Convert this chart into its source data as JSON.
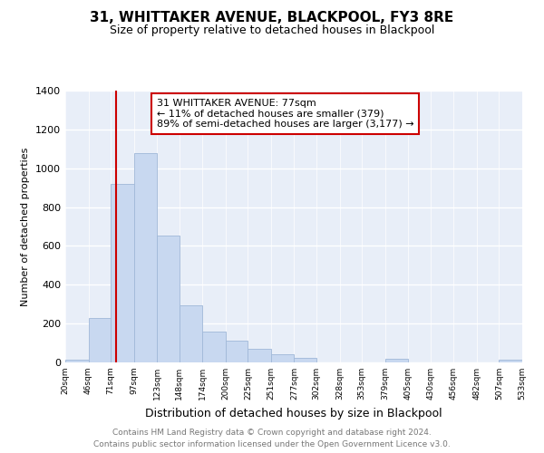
{
  "title": "31, WHITTAKER AVENUE, BLACKPOOL, FY3 8RE",
  "subtitle": "Size of property relative to detached houses in Blackpool",
  "xlabel": "Distribution of detached houses by size in Blackpool",
  "ylabel": "Number of detached properties",
  "bar_color": "#c8d8f0",
  "bar_edge_color": "#a0b8d8",
  "vline_color": "#cc0000",
  "vline_x": 77,
  "annotation_text": "31 WHITTAKER AVENUE: 77sqm\n← 11% of detached houses are smaller (379)\n89% of semi-detached houses are larger (3,177) →",
  "bin_edges": [
    20,
    46,
    71,
    97,
    123,
    148,
    174,
    200,
    225,
    251,
    277,
    302,
    328,
    353,
    379,
    405,
    430,
    456,
    482,
    507,
    533
  ],
  "bar_heights": [
    15,
    230,
    920,
    1080,
    655,
    295,
    160,
    110,
    70,
    40,
    22,
    0,
    0,
    0,
    17,
    0,
    0,
    0,
    0,
    13
  ],
  "xlim": [
    20,
    533
  ],
  "ylim": [
    0,
    1400
  ],
  "yticks": [
    0,
    200,
    400,
    600,
    800,
    1000,
    1200,
    1400
  ],
  "tick_labels": [
    "20sqm",
    "46sqm",
    "71sqm",
    "97sqm",
    "123sqm",
    "148sqm",
    "174sqm",
    "200sqm",
    "225sqm",
    "251sqm",
    "277sqm",
    "302sqm",
    "328sqm",
    "353sqm",
    "379sqm",
    "405sqm",
    "430sqm",
    "456sqm",
    "482sqm",
    "507sqm",
    "533sqm"
  ],
  "footer_line1": "Contains HM Land Registry data © Crown copyright and database right 2024.",
  "footer_line2": "Contains public sector information licensed under the Open Government Licence v3.0.",
  "background_color": "#ffffff",
  "plot_bg_color": "#e8eef8",
  "grid_color": "#ffffff",
  "box_color": "#cc0000",
  "title_fontsize": 11,
  "subtitle_fontsize": 9,
  "annotation_fontsize": 8,
  "footer_fontsize": 6.5,
  "ylabel_fontsize": 8,
  "xlabel_fontsize": 9
}
